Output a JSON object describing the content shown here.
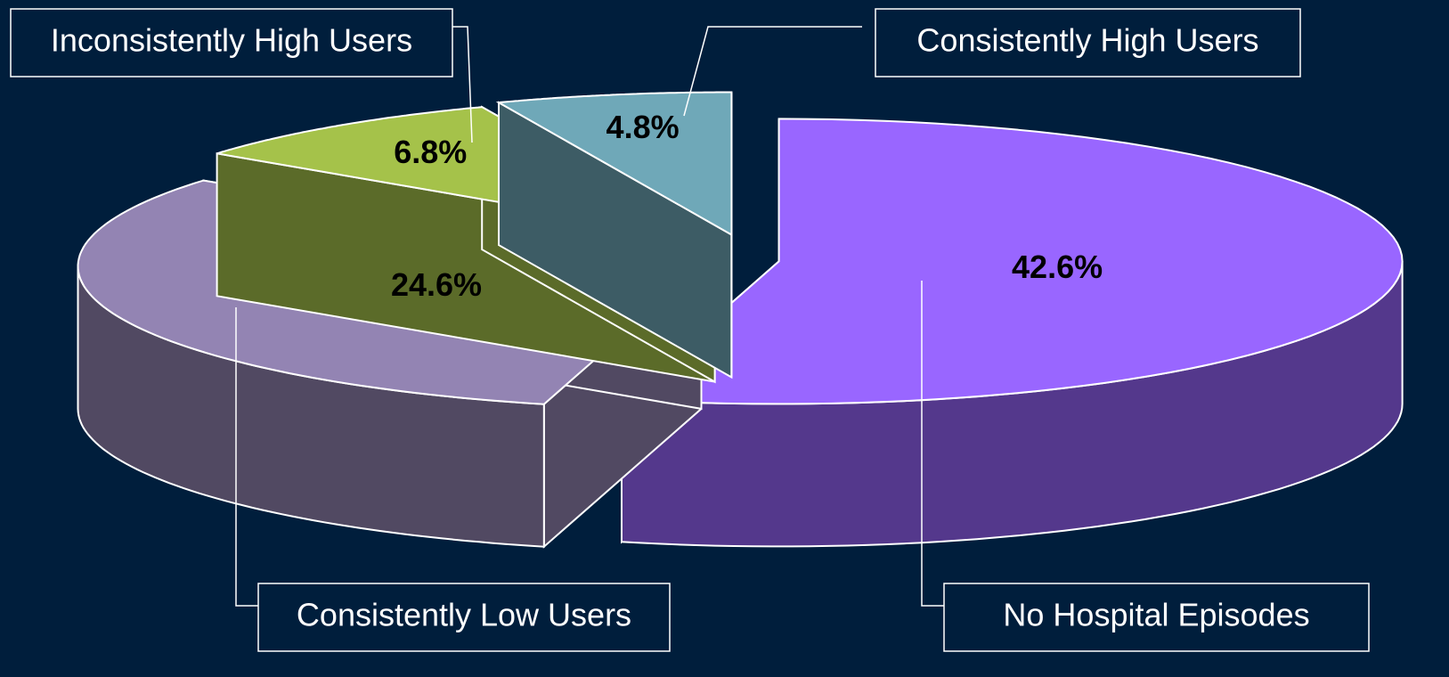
{
  "chart_data": {
    "type": "pie3d",
    "categories": [
      "No Hospital Episodes",
      "Consistently Low Users",
      "Inconsistently High Users",
      "Consistently High Users"
    ],
    "values": [
      42.6,
      24.6,
      6.8,
      4.8
    ],
    "value_labels": [
      "42.6%",
      "24.6%",
      "6.8%",
      "4.8%"
    ],
    "colors": [
      "#9966ff",
      "#9384b3",
      "#a5c24a",
      "#6fa8b8"
    ]
  }
}
